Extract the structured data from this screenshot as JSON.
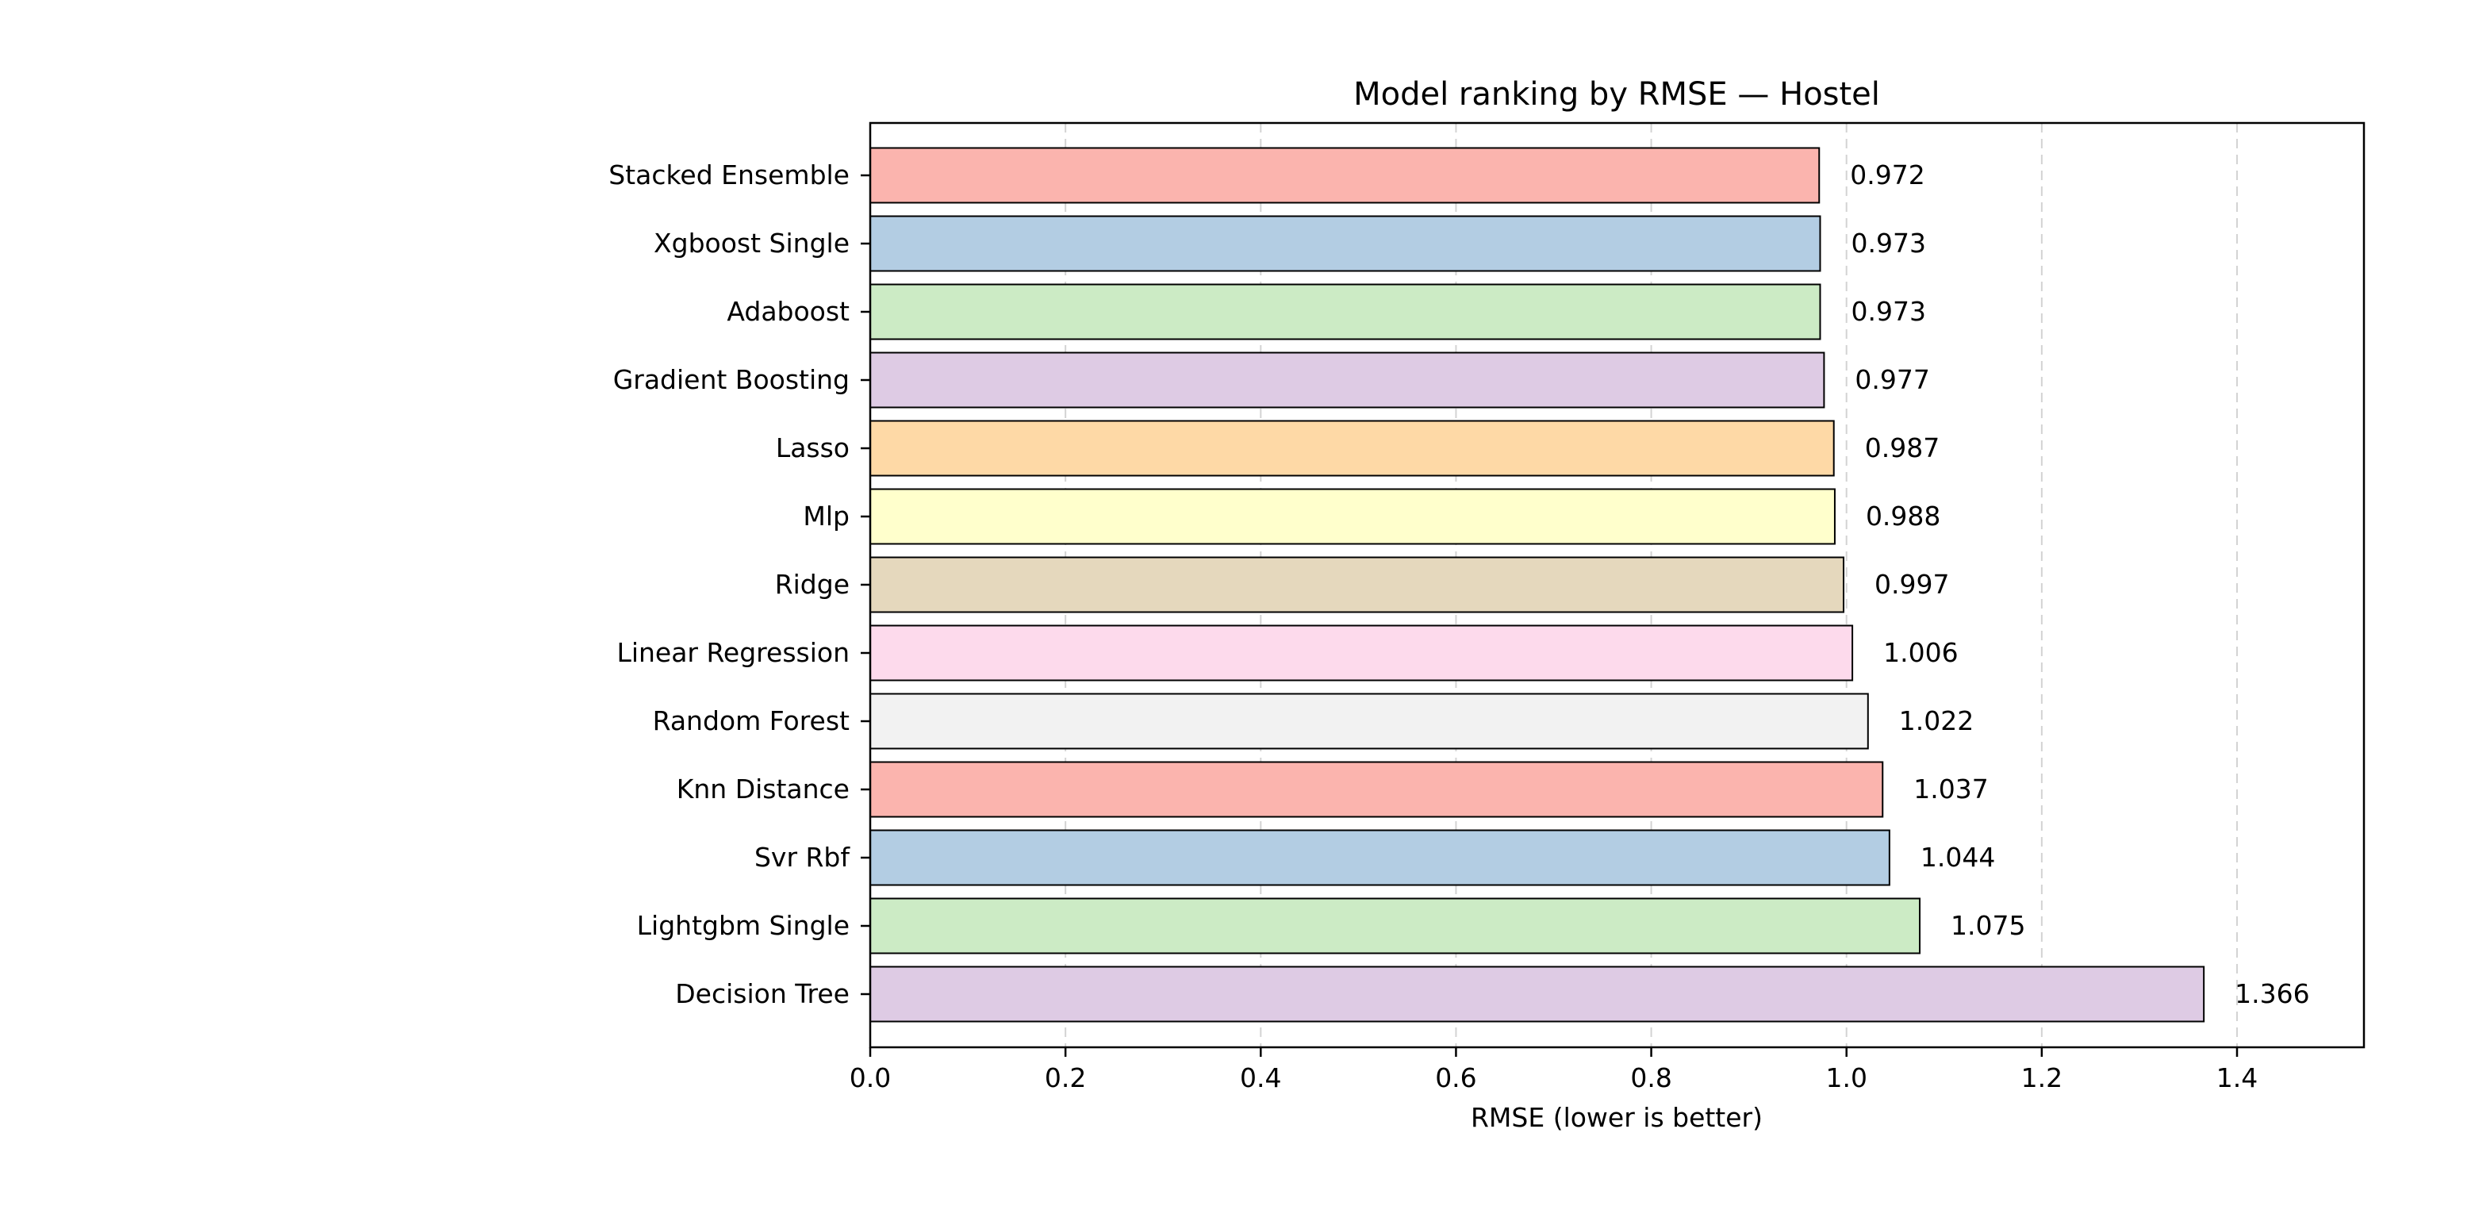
{
  "chart_data": {
    "type": "bar",
    "orientation": "horizontal",
    "title": "Model ranking by RMSE — Hostel",
    "xlabel": "RMSE (lower is better)",
    "ylabel": "",
    "xlim": [
      0,
      1.53
    ],
    "xticks": [
      0.0,
      0.2,
      0.4,
      0.6,
      0.8,
      1.0,
      1.2,
      1.4
    ],
    "xtick_labels": [
      "0.0",
      "0.2",
      "0.4",
      "0.6",
      "0.8",
      "1.0",
      "1.2",
      "1.4"
    ],
    "grid": "x-dashed",
    "categories": [
      "Stacked Ensemble",
      "Xgboost Single",
      "Adaboost",
      "Gradient Boosting",
      "Lasso",
      "Mlp",
      "Ridge",
      "Linear Regression",
      "Random Forest",
      "Knn Distance",
      "Svr Rbf",
      "Lightgbm Single",
      "Decision Tree"
    ],
    "values": [
      0.972,
      0.973,
      0.973,
      0.977,
      0.987,
      0.988,
      0.997,
      1.006,
      1.022,
      1.037,
      1.044,
      1.075,
      1.366
    ],
    "value_labels": [
      "0.972",
      "0.973",
      "0.973",
      "0.977",
      "0.987",
      "0.988",
      "0.997",
      "1.006",
      "1.022",
      "1.037",
      "1.044",
      "1.075",
      "1.366"
    ],
    "colors": [
      "#fbb4ae",
      "#b3cde3",
      "#ccebc5",
      "#decbe4",
      "#fed9a6",
      "#ffffcc",
      "#e5d8bd",
      "#fddaec",
      "#f2f2f2",
      "#fbb4ae",
      "#b3cde3",
      "#ccebc5",
      "#decbe4"
    ]
  }
}
